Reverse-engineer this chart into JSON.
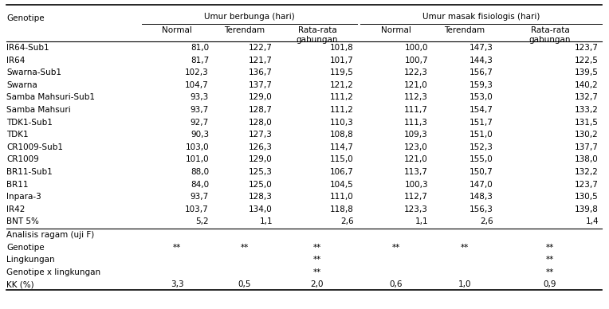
{
  "col_headers_l1_left": "Umur berbunga (hari)",
  "col_headers_l1_right": "Umur masak fisiologis (hari)",
  "col_headers_l2": [
    "Normal",
    "Terendam",
    "Rata-rata\ngabungan",
    "Normal",
    "Terendam",
    "Rata-rata\ngabungan"
  ],
  "row_label_col": "Genotipe",
  "rows": [
    [
      "IR64-Sub1",
      "81,0",
      "122,7",
      "101,8",
      "100,0",
      "147,3",
      "123,7"
    ],
    [
      "IR64",
      "81,7",
      "121,7",
      "101,7",
      "100,7",
      "144,3",
      "122,5"
    ],
    [
      "Swarna-Sub1",
      "102,3",
      "136,7",
      "119,5",
      "122,3",
      "156,7",
      "139,5"
    ],
    [
      "Swarna",
      "104,7",
      "137,7",
      "121,2",
      "121,0",
      "159,3",
      "140,2"
    ],
    [
      "Samba Mahsuri-Sub1",
      "93,3",
      "129,0",
      "111,2",
      "112,3",
      "153,0",
      "132,7"
    ],
    [
      "Samba Mahsuri",
      "93,7",
      "128,7",
      "111,2",
      "111,7",
      "154,7",
      "133,2"
    ],
    [
      "TDK1-Sub1",
      "92,7",
      "128,0",
      "110,3",
      "111,3",
      "151,7",
      "131,5"
    ],
    [
      "TDK1",
      "90,3",
      "127,3",
      "108,8",
      "109,3",
      "151,0",
      "130,2"
    ],
    [
      "CR1009-Sub1",
      "103,0",
      "126,3",
      "114,7",
      "123,0",
      "152,3",
      "137,7"
    ],
    [
      "CR1009",
      "101,0",
      "129,0",
      "115,0",
      "121,0",
      "155,0",
      "138,0"
    ],
    [
      "BR11-Sub1",
      "88,0",
      "125,3",
      "106,7",
      "113,7",
      "150,7",
      "132,2"
    ],
    [
      "BR11",
      "84,0",
      "125,0",
      "104,5",
      "100,3",
      "147,0",
      "123,7"
    ],
    [
      "Inpara-3",
      "93,7",
      "128,3",
      "111,0",
      "112,7",
      "148,3",
      "130,5"
    ],
    [
      "IR42",
      "103,7",
      "134,0",
      "118,8",
      "123,3",
      "156,3",
      "139,8"
    ],
    [
      "BNT 5%",
      "5,2",
      "1,1",
      "2,6",
      "1,1",
      "2,6",
      "1,4"
    ]
  ],
  "bottom_section": [
    [
      "Analisis ragam (uji F)",
      "",
      "",
      "",
      "",
      "",
      ""
    ],
    [
      "Genotipe",
      "**",
      "**",
      "**",
      "**",
      "**",
      "**"
    ],
    [
      "Lingkungan",
      "",
      "",
      "**",
      "",
      "",
      "**"
    ],
    [
      "Genotipe x lingkungan",
      "",
      "",
      "**",
      "",
      "",
      "**"
    ],
    [
      "KK (%)",
      "3,3",
      "0,5",
      "2,0",
      "0,6",
      "1,0",
      "0,9"
    ]
  ],
  "font_size": 7.5,
  "header_font_size": 7.5
}
